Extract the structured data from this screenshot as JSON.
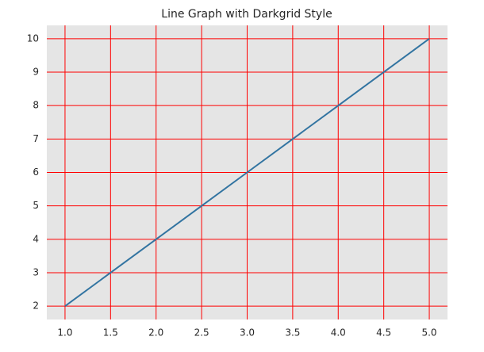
{
  "chart_data": {
    "type": "line",
    "title": "Line Graph with Darkgrid Style",
    "x": [
      1,
      2,
      3,
      4,
      5
    ],
    "series": [
      {
        "color": "#3274a1",
        "values": [
          2,
          4,
          6,
          8,
          10
        ]
      }
    ],
    "xlim": [
      0.8,
      5.2
    ],
    "xticks": [
      {
        "value": 1,
        "label": "1.0"
      },
      {
        "value": 1.5,
        "label": "1.5"
      },
      {
        "value": 2,
        "label": "2.0"
      },
      {
        "value": 2.5,
        "label": "2.5"
      },
      {
        "value": 3,
        "label": "3.0"
      },
      {
        "value": 3.5,
        "label": "3.5"
      },
      {
        "value": 4,
        "label": "4.0"
      },
      {
        "value": 4.5,
        "label": "4.5"
      },
      {
        "value": 5,
        "label": "5.0"
      }
    ],
    "ylim": [
      1.6,
      10.4
    ],
    "yticks": [
      2,
      3,
      4,
      5,
      6,
      7,
      8,
      9,
      10
    ],
    "grid": true,
    "grid_color": "#ff0000",
    "background": "#e5e5e5"
  }
}
